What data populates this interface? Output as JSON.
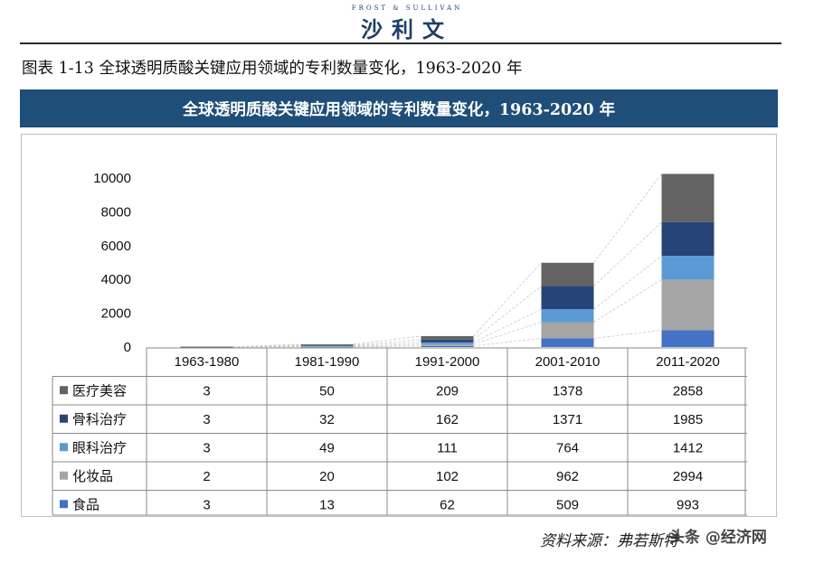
{
  "header": {
    "brand_small": "FROST & SULLIVAN",
    "brand_main": "沙利文",
    "caption": "图表 1-13 全球透明质酸关键应用领域的专利数量变化，1963-2020 年",
    "banner_title": "全球透明质酸关键应用领域的专利数量变化，1963-2020 年"
  },
  "footer": {
    "source": "资料来源：弗若斯特",
    "watermark": "头条 @经济网"
  },
  "chart_data": {
    "type": "bar",
    "stacked": true,
    "categories": [
      "1963-1980",
      "1981-1990",
      "1991-2000",
      "2001-2010",
      "2011-2020"
    ],
    "series": [
      {
        "name": "食品",
        "color": "#4472c4",
        "values": [
          3,
          13,
          62,
          509,
          993
        ]
      },
      {
        "name": "化妆品",
        "color": "#a5a5a5",
        "values": [
          2,
          20,
          102,
          962,
          2994
        ]
      },
      {
        "name": "眼科治疗",
        "color": "#5b9bd5",
        "values": [
          3,
          49,
          111,
          764,
          1412
        ]
      },
      {
        "name": "骨科治疗",
        "color": "#264478",
        "values": [
          3,
          32,
          162,
          1371,
          1985
        ]
      },
      {
        "name": "医疗美容",
        "color": "#636363",
        "values": [
          3,
          50,
          209,
          1378,
          2858
        ]
      }
    ],
    "table_order": [
      "医疗美容",
      "骨科治疗",
      "眼科治疗",
      "化妆品",
      "食品"
    ],
    "yticks": [
      0,
      2000,
      4000,
      6000,
      8000,
      10000
    ],
    "ylim": [
      0,
      11000
    ],
    "grid": false,
    "legend": "data-table"
  }
}
